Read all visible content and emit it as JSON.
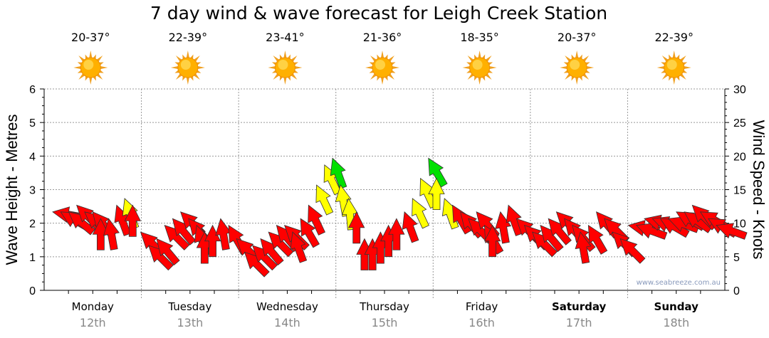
{
  "chart_data": {
    "type": "scatter",
    "title": "7 day wind & wave forecast for Leigh Creek Station",
    "ylabel": "Wave Height - Metres",
    "y2label": "Wind Speed - Knots",
    "ylim": [
      0,
      6
    ],
    "y2lim": [
      0,
      30
    ],
    "yticks": [
      "0",
      "1",
      "2",
      "3",
      "4",
      "5",
      "6"
    ],
    "y2ticks": [
      "0",
      "5",
      "10",
      "15",
      "20",
      "25",
      "30"
    ],
    "grid": true,
    "watermark": "www.seabreeze.com.au",
    "days": [
      {
        "name": "Monday",
        "date": "12th",
        "temp": "20-37°",
        "bold": false
      },
      {
        "name": "Tuesday",
        "date": "13th",
        "temp": "22-39°",
        "bold": false
      },
      {
        "name": "Wednesday",
        "date": "14th",
        "temp": "23-41°",
        "bold": false
      },
      {
        "name": "Thursday",
        "date": "15th",
        "temp": "21-36°",
        "bold": false
      },
      {
        "name": "Friday",
        "date": "16th",
        "temp": "18-35°",
        "bold": false
      },
      {
        "name": "Saturday",
        "date": "17th",
        "temp": "20-37°",
        "bold": true
      },
      {
        "name": "Sunday",
        "date": "18th",
        "temp": "22-39°",
        "bold": true
      }
    ],
    "wind_colors": {
      "low": "#ff0000",
      "mid": "#ffff00",
      "high": "#00e000",
      "mid_from": 13.5,
      "high_from": 19.5
    },
    "wind": [
      [
        12,
        -80
      ],
      [
        12,
        -60
      ],
      [
        12,
        -50
      ],
      [
        13,
        -45
      ],
      [
        12,
        -50
      ],
      [
        12,
        -40
      ],
      [
        11,
        0
      ],
      [
        11,
        -10
      ],
      [
        13,
        -20
      ],
      [
        14,
        -20
      ],
      [
        13,
        0
      ],
      [
        9,
        -45
      ],
      [
        7,
        -45
      ],
      [
        8,
        -40
      ],
      [
        10,
        -45
      ],
      [
        11,
        -40
      ],
      [
        12,
        -45
      ],
      [
        11,
        -40
      ],
      [
        10,
        -20
      ],
      [
        9,
        0
      ],
      [
        10,
        0
      ],
      [
        11,
        -10
      ],
      [
        10,
        -30
      ],
      [
        8,
        -45
      ],
      [
        6,
        -45
      ],
      [
        7,
        -45
      ],
      [
        8,
        -40
      ],
      [
        9,
        -45
      ],
      [
        10,
        -40
      ],
      [
        10,
        -45
      ],
      [
        9,
        -20
      ],
      [
        11,
        -30
      ],
      [
        13,
        -25
      ],
      [
        16,
        -25
      ],
      [
        19,
        -25
      ],
      [
        20,
        -20
      ],
      [
        16,
        -10
      ],
      [
        14,
        -5
      ],
      [
        12,
        0
      ],
      [
        8,
        0
      ],
      [
        8,
        0
      ],
      [
        9,
        0
      ],
      [
        10,
        0
      ],
      [
        11,
        0
      ],
      [
        12,
        -20
      ],
      [
        14,
        -25
      ],
      [
        17,
        -25
      ],
      [
        20,
        -30
      ],
      [
        17,
        0
      ],
      [
        14,
        -20
      ],
      [
        13,
        -30
      ],
      [
        12,
        -40
      ],
      [
        11,
        -45
      ],
      [
        12,
        -40
      ],
      [
        10,
        -30
      ],
      [
        10,
        0
      ],
      [
        12,
        -10
      ],
      [
        13,
        -20
      ],
      [
        11,
        -45
      ],
      [
        10,
        -45
      ],
      [
        9,
        -45
      ],
      [
        10,
        -40
      ],
      [
        11,
        -40
      ],
      [
        12,
        -45
      ],
      [
        11,
        -40
      ],
      [
        10,
        -40
      ],
      [
        9,
        -10
      ],
      [
        10,
        -30
      ],
      [
        12,
        -40
      ],
      [
        11,
        -45
      ],
      [
        9,
        -45
      ],
      [
        8,
        -45
      ],
      [
        10,
        -80
      ],
      [
        10,
        -70
      ],
      [
        11,
        -75
      ],
      [
        11,
        -70
      ],
      [
        11,
        -60
      ],
      [
        11,
        -70
      ],
      [
        12,
        -60
      ],
      [
        12,
        -55
      ],
      [
        13,
        -45
      ],
      [
        12,
        -60
      ],
      [
        11,
        -60
      ],
      [
        10,
        -70
      ]
    ]
  }
}
